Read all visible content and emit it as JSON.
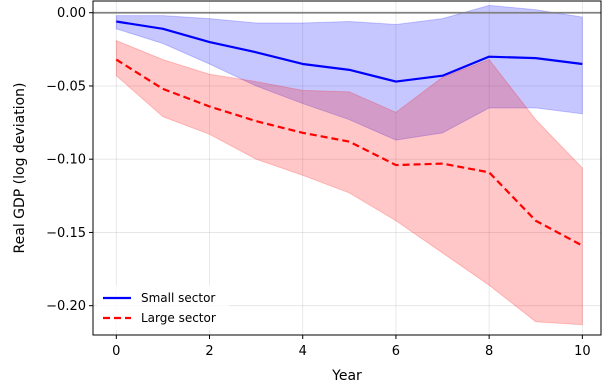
{
  "chart_data": {
    "type": "line",
    "xlabel": "Year",
    "ylabel": "Real GDP (log deviation)",
    "xlim": [
      -0.5,
      10.4
    ],
    "ylim": [
      -0.22,
      0.008
    ],
    "xticks": [
      0,
      2,
      4,
      6,
      8,
      10
    ],
    "yticks": [
      0.0,
      -0.05,
      -0.1,
      -0.15,
      -0.2
    ],
    "ytick_labels": [
      "0.00",
      "−0.05",
      "−0.10",
      "−0.15",
      "−0.20"
    ],
    "grid": true,
    "legend_position": "lower-left",
    "zero_line": {
      "y": 0,
      "color": "#808080"
    },
    "series": [
      {
        "name": "Small sector",
        "color": "#0000ff",
        "line_style": "solid",
        "x": [
          0,
          1,
          2,
          3,
          4,
          5,
          6,
          7,
          8,
          9,
          10
        ],
        "values": [
          -0.006,
          -0.011,
          -0.02,
          -0.027,
          -0.035,
          -0.039,
          -0.047,
          -0.043,
          -0.03,
          -0.031,
          -0.035
        ],
        "band_upper": [
          -0.002,
          -0.002,
          -0.004,
          -0.007,
          -0.007,
          -0.006,
          -0.008,
          -0.004,
          0.005,
          0.002,
          -0.003
        ],
        "band_lower": [
          -0.011,
          -0.021,
          -0.035,
          -0.05,
          -0.062,
          -0.073,
          -0.087,
          -0.082,
          -0.065,
          -0.065,
          -0.069
        ],
        "band_color": "#0000ff"
      },
      {
        "name": "Large sector",
        "color": "#ff0000",
        "line_style": "dashed",
        "x": [
          0,
          1,
          2,
          3,
          4,
          5,
          6,
          7,
          8,
          9,
          10
        ],
        "values": [
          -0.032,
          -0.052,
          -0.064,
          -0.074,
          -0.082,
          -0.088,
          -0.104,
          -0.103,
          -0.109,
          -0.142,
          -0.159
        ],
        "band_upper": [
          -0.019,
          -0.032,
          -0.042,
          -0.047,
          -0.053,
          -0.054,
          -0.068,
          -0.044,
          -0.032,
          -0.073,
          -0.106
        ],
        "band_lower": [
          -0.043,
          -0.071,
          -0.083,
          -0.1,
          -0.111,
          -0.123,
          -0.142,
          -0.164,
          -0.186,
          -0.211,
          -0.213
        ],
        "band_color": "#ff0000"
      }
    ]
  }
}
